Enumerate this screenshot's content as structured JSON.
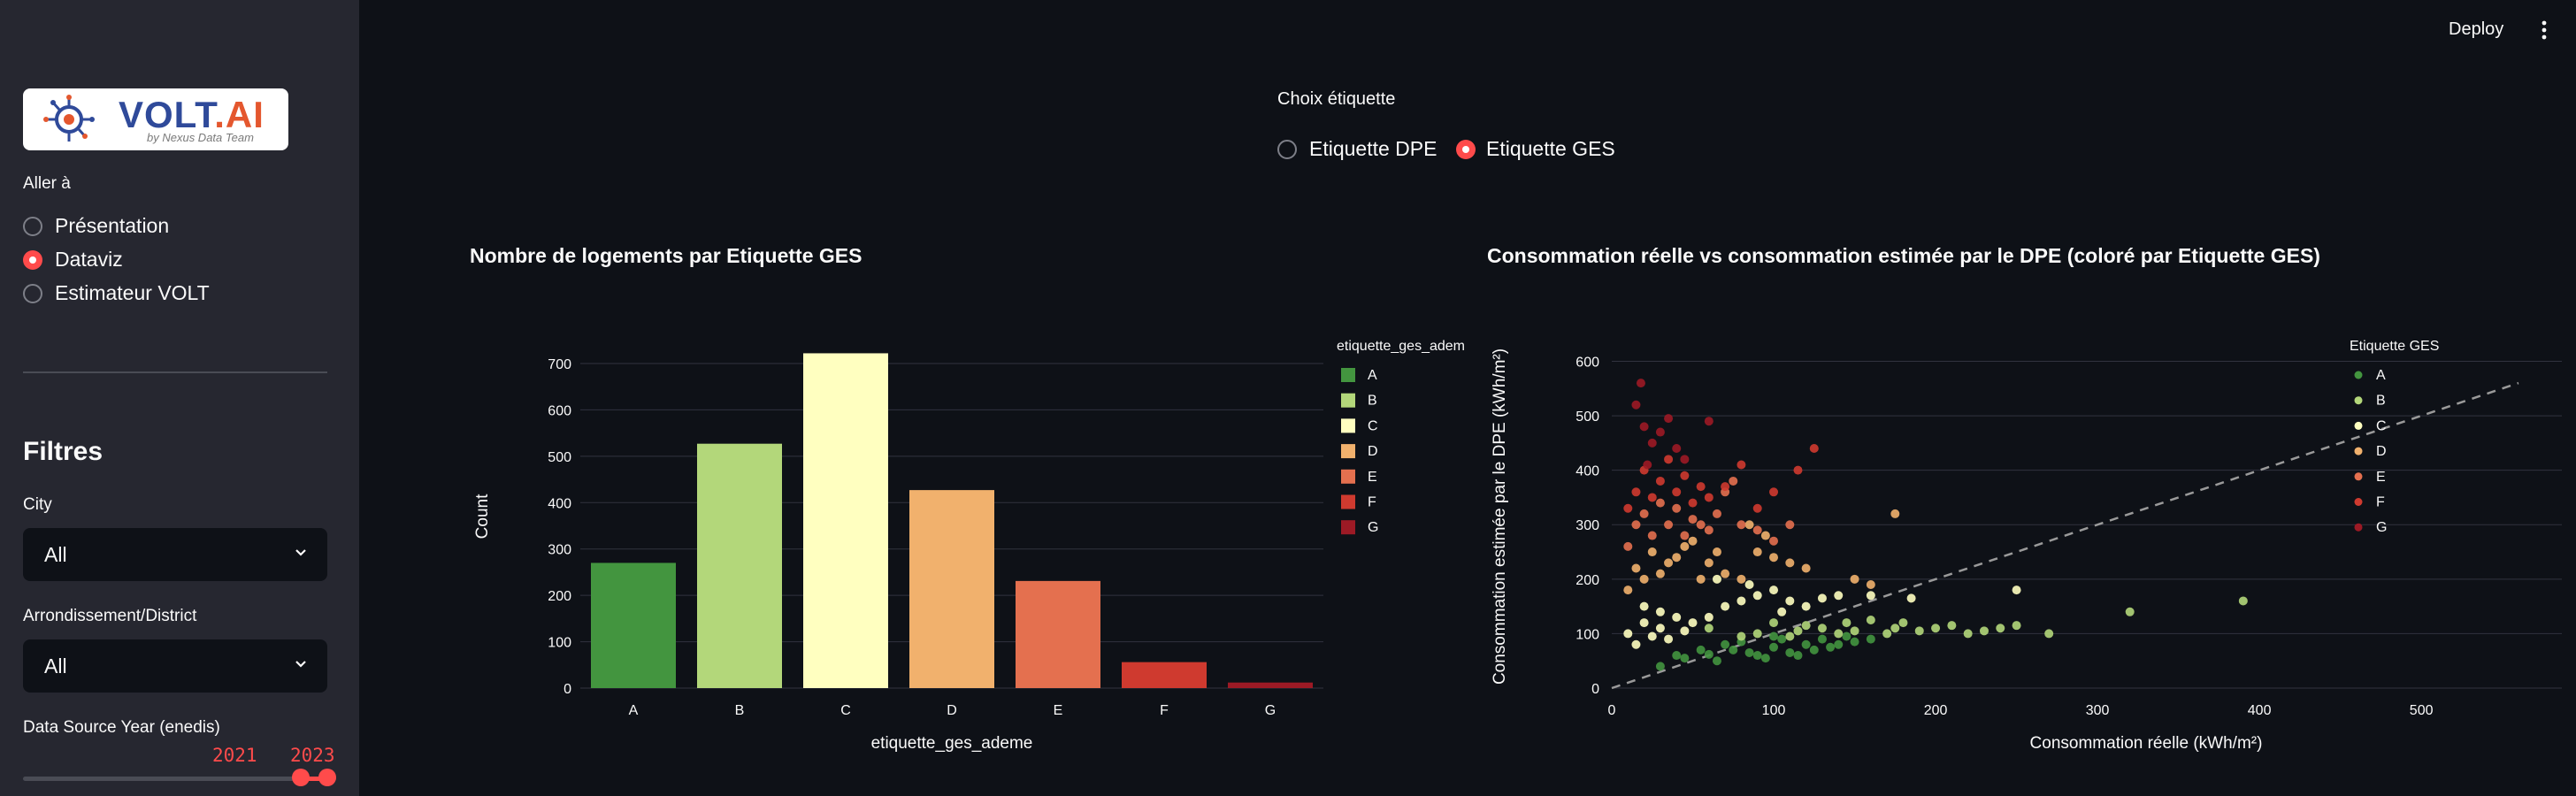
{
  "header": {
    "deploy_label": "Deploy"
  },
  "sidebar": {
    "logo": {
      "main": "VOLT",
      "dot": ".",
      "accent": "AI",
      "tagline": "by Nexus Data Team"
    },
    "nav_label": "Aller à",
    "nav_items": [
      {
        "label": "Présentation",
        "selected": false
      },
      {
        "label": "Dataviz",
        "selected": true
      },
      {
        "label": "Estimateur VOLT",
        "selected": false
      }
    ],
    "filters_title": "Filtres",
    "city": {
      "label": "City",
      "value": "All"
    },
    "district": {
      "label": "Arrondissement/District",
      "value": "All"
    },
    "year": {
      "label": "Data Source Year (enedis)",
      "min_value": "2021",
      "max_value": "2023"
    }
  },
  "choice": {
    "label": "Choix étiquette",
    "options": [
      {
        "label": "Etiquette DPE",
        "selected": false
      },
      {
        "label": "Etiquette GES",
        "selected": true
      }
    ]
  },
  "colors": {
    "A": "#43953f",
    "B": "#b3d77a",
    "C": "#ffffc0",
    "D": "#f1b16d",
    "E": "#e4704f",
    "F": "#cf3a2f",
    "G": "#9c1a25",
    "accent": "#ff4b4b"
  },
  "chart_data": [
    {
      "type": "bar",
      "title": "Nombre de logements par Etiquette GES",
      "xlabel": "etiquette_ges_ademe",
      "ylabel": "Count",
      "categories": [
        "A",
        "B",
        "C",
        "D",
        "E",
        "F",
        "G"
      ],
      "values": [
        270,
        527,
        722,
        427,
        231,
        56,
        12
      ],
      "ylim": [
        0,
        740
      ],
      "yticks": [
        0,
        100,
        200,
        300,
        400,
        500,
        600,
        700
      ],
      "legend_title": "etiquette_ges_ademe",
      "legend": [
        "A",
        "B",
        "C",
        "D",
        "E",
        "F",
        "G"
      ],
      "legend_position": "right",
      "grid": true
    },
    {
      "type": "scatter",
      "title": "Consommation réelle vs consommation estimée par le DPE (coloré par Etiquette GES)",
      "xlabel": "Consommation réelle (kWh/m²)",
      "ylabel": "Consommation estimée par le DPE (kWh/m²)",
      "xlim": [
        0,
        660
      ],
      "ylim": [
        0,
        630
      ],
      "xticks": [
        0,
        100,
        200,
        300,
        400,
        500,
        600
      ],
      "yticks": [
        0,
        100,
        200,
        300,
        400,
        500,
        600
      ],
      "legend_title": "Etiquette GES",
      "legend": [
        "A",
        "B",
        "C",
        "D",
        "E",
        "F",
        "G"
      ],
      "legend_position": "right",
      "grid": true,
      "reference_line": {
        "x": [
          0,
          560
        ],
        "y": [
          0,
          560
        ],
        "style": "dashed"
      },
      "series": [
        {
          "name": "A",
          "points": [
            [
              30,
              40
            ],
            [
              45,
              55
            ],
            [
              60,
              62
            ],
            [
              75,
              70
            ],
            [
              90,
              60
            ],
            [
              100,
              75
            ],
            [
              110,
              65
            ],
            [
              120,
              80
            ],
            [
              55,
              70
            ],
            [
              80,
              85
            ],
            [
              95,
              55
            ],
            [
              105,
              90
            ],
            [
              125,
              70
            ],
            [
              140,
              80
            ],
            [
              65,
              50
            ],
            [
              85,
              65
            ],
            [
              115,
              60
            ],
            [
              130,
              90
            ],
            [
              70,
              80
            ],
            [
              100,
              95
            ],
            [
              40,
              60
            ],
            [
              150,
              85
            ],
            [
              135,
              75
            ],
            [
              145,
              95
            ],
            [
              160,
              90
            ]
          ]
        },
        {
          "name": "B",
          "points": [
            [
              60,
              110
            ],
            [
              90,
              100
            ],
            [
              110,
              95
            ],
            [
              130,
              110
            ],
            [
              150,
              105
            ],
            [
              170,
              100
            ],
            [
              180,
              120
            ],
            [
              200,
              110
            ],
            [
              220,
              100
            ],
            [
              240,
              110
            ],
            [
              250,
              115
            ],
            [
              270,
              100
            ],
            [
              320,
              140
            ],
            [
              390,
              160
            ],
            [
              120,
              115
            ],
            [
              140,
              100
            ],
            [
              160,
              125
            ],
            [
              100,
              120
            ],
            [
              80,
              95
            ],
            [
              190,
              105
            ],
            [
              210,
              115
            ],
            [
              230,
              105
            ],
            [
              175,
              110
            ],
            [
              145,
              120
            ],
            [
              115,
              105
            ]
          ]
        },
        {
          "name": "C",
          "points": [
            [
              10,
              100
            ],
            [
              15,
              80
            ],
            [
              20,
              120
            ],
            [
              25,
              95
            ],
            [
              30,
              110
            ],
            [
              35,
              90
            ],
            [
              40,
              130
            ],
            [
              20,
              150
            ],
            [
              30,
              140
            ],
            [
              45,
              105
            ],
            [
              50,
              120
            ],
            [
              60,
              130
            ],
            [
              70,
              150
            ],
            [
              80,
              160
            ],
            [
              90,
              170
            ],
            [
              100,
              180
            ],
            [
              110,
              160
            ],
            [
              120,
              150
            ],
            [
              130,
              165
            ],
            [
              140,
              170
            ],
            [
              160,
              170
            ],
            [
              185,
              165
            ],
            [
              250,
              180
            ],
            [
              105,
              140
            ],
            [
              85,
              190
            ],
            [
              65,
              200
            ]
          ]
        },
        {
          "name": "D",
          "points": [
            [
              10,
              180
            ],
            [
              15,
              220
            ],
            [
              20,
              200
            ],
            [
              25,
              250
            ],
            [
              30,
              210
            ],
            [
              35,
              230
            ],
            [
              40,
              240
            ],
            [
              45,
              260
            ],
            [
              50,
              270
            ],
            [
              55,
              200
            ],
            [
              60,
              230
            ],
            [
              70,
              210
            ],
            [
              80,
              200
            ],
            [
              90,
              250
            ],
            [
              100,
              240
            ],
            [
              110,
              230
            ],
            [
              120,
              220
            ],
            [
              150,
              200
            ],
            [
              160,
              190
            ],
            [
              175,
              320
            ],
            [
              95,
              280
            ],
            [
              85,
              300
            ],
            [
              65,
              250
            ]
          ]
        },
        {
          "name": "E",
          "points": [
            [
              10,
              260
            ],
            [
              15,
              300
            ],
            [
              20,
              320
            ],
            [
              25,
              280
            ],
            [
              30,
              340
            ],
            [
              35,
              300
            ],
            [
              40,
              330
            ],
            [
              45,
              280
            ],
            [
              50,
              310
            ],
            [
              55,
              300
            ],
            [
              60,
              290
            ],
            [
              65,
              320
            ],
            [
              70,
              360
            ],
            [
              80,
              300
            ],
            [
              90,
              290
            ],
            [
              100,
              270
            ],
            [
              110,
              300
            ],
            [
              75,
              380
            ]
          ]
        },
        {
          "name": "F",
          "points": [
            [
              10,
              330
            ],
            [
              15,
              360
            ],
            [
              20,
              400
            ],
            [
              25,
              350
            ],
            [
              30,
              380
            ],
            [
              35,
              420
            ],
            [
              40,
              360
            ],
            [
              45,
              390
            ],
            [
              50,
              340
            ],
            [
              55,
              370
            ],
            [
              70,
              370
            ],
            [
              80,
              410
            ],
            [
              100,
              360
            ],
            [
              115,
              400
            ],
            [
              125,
              440
            ],
            [
              90,
              330
            ],
            [
              60,
              350
            ]
          ]
        },
        {
          "name": "G",
          "points": [
            [
              15,
              520
            ],
            [
              20,
              480
            ],
            [
              25,
              450
            ],
            [
              30,
              470
            ],
            [
              35,
              495
            ],
            [
              40,
              440
            ],
            [
              60,
              490
            ],
            [
              18,
              560
            ],
            [
              22,
              410
            ],
            [
              45,
              420
            ]
          ]
        }
      ]
    }
  ]
}
